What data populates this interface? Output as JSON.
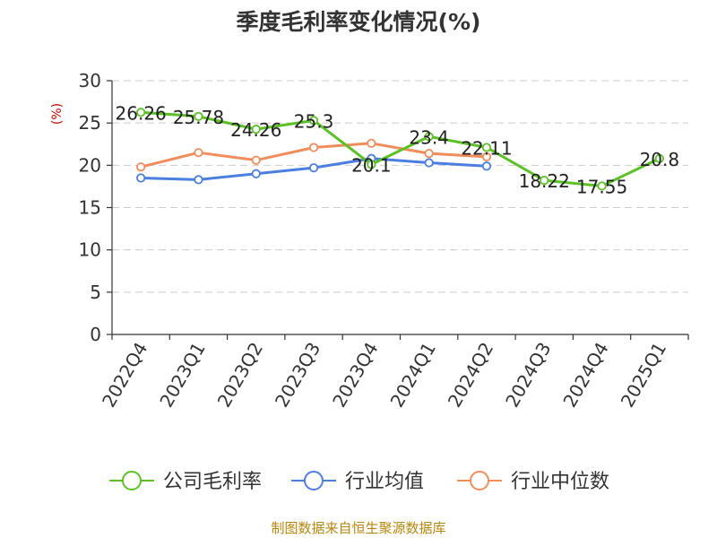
{
  "colors": {
    "company": "#5bc124",
    "industry_avg": "#4a7ee0",
    "industry_median": "#f28c5a",
    "grid": "#cccccc",
    "axis": "#333333",
    "source": "#b8860b",
    "ylabel": "#cc0000"
  },
  "source": "制图数据来自恒生聚源数据库",
  "chart_data": {
    "type": "line",
    "title": "季度毛利率变化情况(%)",
    "ylabel": "(%)",
    "xlabel": "",
    "categories": [
      "2022Q4",
      "2023Q1",
      "2023Q2",
      "2023Q3",
      "2023Q4",
      "2024Q1",
      "2024Q2",
      "2024Q3",
      "2024Q4",
      "2025Q1"
    ],
    "ylim": [
      0,
      30
    ],
    "yticks": [
      0,
      5,
      10,
      15,
      20,
      25,
      30
    ],
    "grid": true,
    "legend_position": "bottom",
    "series": [
      {
        "name": "公司毛利率",
        "color_key": "company",
        "values": [
          26.26,
          25.78,
          24.26,
          25.3,
          20.1,
          23.4,
          22.11,
          18.22,
          17.55,
          20.8
        ],
        "labels": [
          "26.26",
          "25.78",
          "24.26",
          "25.3",
          "20.1",
          "23.4",
          "22.11",
          "18.22",
          "17.55",
          "20.8"
        ]
      },
      {
        "name": "行业均值",
        "color_key": "industry_avg",
        "values": [
          18.5,
          18.3,
          19.0,
          19.7,
          20.8,
          20.3,
          19.9,
          null,
          null,
          null
        ]
      },
      {
        "name": "行业中位数",
        "color_key": "industry_median",
        "values": [
          19.8,
          21.5,
          20.6,
          22.1,
          22.6,
          21.4,
          21.0,
          null,
          null,
          null
        ]
      }
    ]
  }
}
